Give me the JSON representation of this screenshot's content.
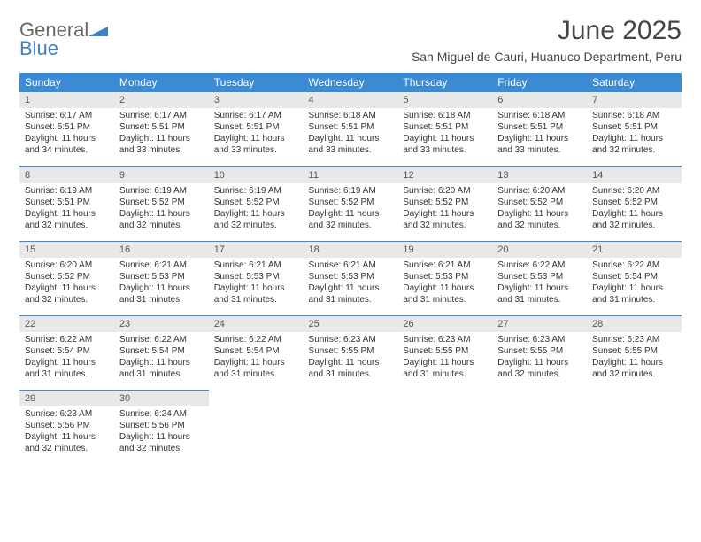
{
  "logo": {
    "word1": "General",
    "word2": "Blue"
  },
  "title": "June 2025",
  "location": "San Miguel de Cauri, Huanuco Department, Peru",
  "colors": {
    "header_bg": "#3b8bd4",
    "header_text": "#ffffff",
    "daynum_bg": "#e8e8e8",
    "rule": "#3b8bd4",
    "logo_gray": "#666666",
    "logo_blue": "#3b7fc4"
  },
  "typography": {
    "title_fontsize": 30,
    "location_fontsize": 14,
    "dayheader_fontsize": 12,
    "body_fontsize": 10
  },
  "weekdays": [
    "Sunday",
    "Monday",
    "Tuesday",
    "Wednesday",
    "Thursday",
    "Friday",
    "Saturday"
  ],
  "weeks": [
    [
      {
        "n": "1",
        "sunrise": "Sunrise: 6:17 AM",
        "sunset": "Sunset: 5:51 PM",
        "daylight": "Daylight: 11 hours and 34 minutes."
      },
      {
        "n": "2",
        "sunrise": "Sunrise: 6:17 AM",
        "sunset": "Sunset: 5:51 PM",
        "daylight": "Daylight: 11 hours and 33 minutes."
      },
      {
        "n": "3",
        "sunrise": "Sunrise: 6:17 AM",
        "sunset": "Sunset: 5:51 PM",
        "daylight": "Daylight: 11 hours and 33 minutes."
      },
      {
        "n": "4",
        "sunrise": "Sunrise: 6:18 AM",
        "sunset": "Sunset: 5:51 PM",
        "daylight": "Daylight: 11 hours and 33 minutes."
      },
      {
        "n": "5",
        "sunrise": "Sunrise: 6:18 AM",
        "sunset": "Sunset: 5:51 PM",
        "daylight": "Daylight: 11 hours and 33 minutes."
      },
      {
        "n": "6",
        "sunrise": "Sunrise: 6:18 AM",
        "sunset": "Sunset: 5:51 PM",
        "daylight": "Daylight: 11 hours and 33 minutes."
      },
      {
        "n": "7",
        "sunrise": "Sunrise: 6:18 AM",
        "sunset": "Sunset: 5:51 PM",
        "daylight": "Daylight: 11 hours and 32 minutes."
      }
    ],
    [
      {
        "n": "8",
        "sunrise": "Sunrise: 6:19 AM",
        "sunset": "Sunset: 5:51 PM",
        "daylight": "Daylight: 11 hours and 32 minutes."
      },
      {
        "n": "9",
        "sunrise": "Sunrise: 6:19 AM",
        "sunset": "Sunset: 5:52 PM",
        "daylight": "Daylight: 11 hours and 32 minutes."
      },
      {
        "n": "10",
        "sunrise": "Sunrise: 6:19 AM",
        "sunset": "Sunset: 5:52 PM",
        "daylight": "Daylight: 11 hours and 32 minutes."
      },
      {
        "n": "11",
        "sunrise": "Sunrise: 6:19 AM",
        "sunset": "Sunset: 5:52 PM",
        "daylight": "Daylight: 11 hours and 32 minutes."
      },
      {
        "n": "12",
        "sunrise": "Sunrise: 6:20 AM",
        "sunset": "Sunset: 5:52 PM",
        "daylight": "Daylight: 11 hours and 32 minutes."
      },
      {
        "n": "13",
        "sunrise": "Sunrise: 6:20 AM",
        "sunset": "Sunset: 5:52 PM",
        "daylight": "Daylight: 11 hours and 32 minutes."
      },
      {
        "n": "14",
        "sunrise": "Sunrise: 6:20 AM",
        "sunset": "Sunset: 5:52 PM",
        "daylight": "Daylight: 11 hours and 32 minutes."
      }
    ],
    [
      {
        "n": "15",
        "sunrise": "Sunrise: 6:20 AM",
        "sunset": "Sunset: 5:52 PM",
        "daylight": "Daylight: 11 hours and 32 minutes."
      },
      {
        "n": "16",
        "sunrise": "Sunrise: 6:21 AM",
        "sunset": "Sunset: 5:53 PM",
        "daylight": "Daylight: 11 hours and 31 minutes."
      },
      {
        "n": "17",
        "sunrise": "Sunrise: 6:21 AM",
        "sunset": "Sunset: 5:53 PM",
        "daylight": "Daylight: 11 hours and 31 minutes."
      },
      {
        "n": "18",
        "sunrise": "Sunrise: 6:21 AM",
        "sunset": "Sunset: 5:53 PM",
        "daylight": "Daylight: 11 hours and 31 minutes."
      },
      {
        "n": "19",
        "sunrise": "Sunrise: 6:21 AM",
        "sunset": "Sunset: 5:53 PM",
        "daylight": "Daylight: 11 hours and 31 minutes."
      },
      {
        "n": "20",
        "sunrise": "Sunrise: 6:22 AM",
        "sunset": "Sunset: 5:53 PM",
        "daylight": "Daylight: 11 hours and 31 minutes."
      },
      {
        "n": "21",
        "sunrise": "Sunrise: 6:22 AM",
        "sunset": "Sunset: 5:54 PM",
        "daylight": "Daylight: 11 hours and 31 minutes."
      }
    ],
    [
      {
        "n": "22",
        "sunrise": "Sunrise: 6:22 AM",
        "sunset": "Sunset: 5:54 PM",
        "daylight": "Daylight: 11 hours and 31 minutes."
      },
      {
        "n": "23",
        "sunrise": "Sunrise: 6:22 AM",
        "sunset": "Sunset: 5:54 PM",
        "daylight": "Daylight: 11 hours and 31 minutes."
      },
      {
        "n": "24",
        "sunrise": "Sunrise: 6:22 AM",
        "sunset": "Sunset: 5:54 PM",
        "daylight": "Daylight: 11 hours and 31 minutes."
      },
      {
        "n": "25",
        "sunrise": "Sunrise: 6:23 AM",
        "sunset": "Sunset: 5:55 PM",
        "daylight": "Daylight: 11 hours and 31 minutes."
      },
      {
        "n": "26",
        "sunrise": "Sunrise: 6:23 AM",
        "sunset": "Sunset: 5:55 PM",
        "daylight": "Daylight: 11 hours and 31 minutes."
      },
      {
        "n": "27",
        "sunrise": "Sunrise: 6:23 AM",
        "sunset": "Sunset: 5:55 PM",
        "daylight": "Daylight: 11 hours and 32 minutes."
      },
      {
        "n": "28",
        "sunrise": "Sunrise: 6:23 AM",
        "sunset": "Sunset: 5:55 PM",
        "daylight": "Daylight: 11 hours and 32 minutes."
      }
    ],
    [
      {
        "n": "29",
        "sunrise": "Sunrise: 6:23 AM",
        "sunset": "Sunset: 5:56 PM",
        "daylight": "Daylight: 11 hours and 32 minutes."
      },
      {
        "n": "30",
        "sunrise": "Sunrise: 6:24 AM",
        "sunset": "Sunset: 5:56 PM",
        "daylight": "Daylight: 11 hours and 32 minutes."
      },
      null,
      null,
      null,
      null,
      null
    ]
  ]
}
